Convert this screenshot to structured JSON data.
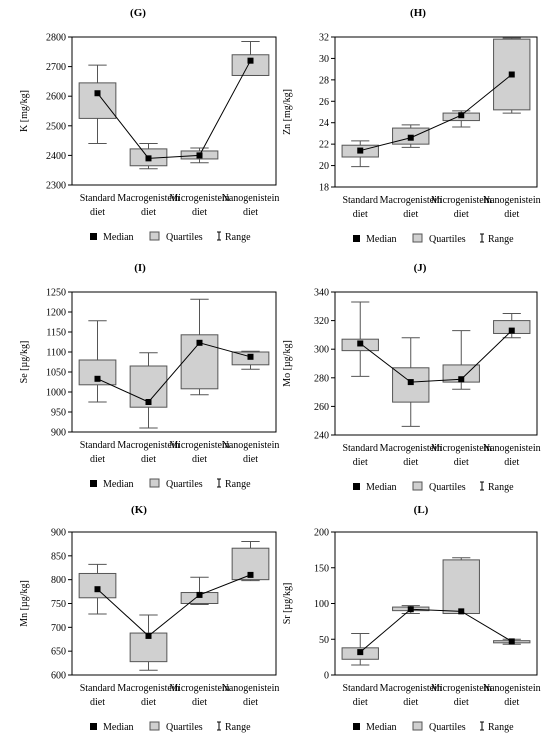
{
  "legend": {
    "median": "Median",
    "quartiles": "Quartiles",
    "range": "Range"
  },
  "colors": {
    "box_fill": "#d0d0d0",
    "stroke": "#555555",
    "median_marker": "#000000"
  },
  "chart_data": [
    {
      "panel": "(G)",
      "type": "boxplot",
      "ylabel": "K [mg/kg]",
      "ylim": [
        2300,
        2800
      ],
      "yticks": [
        2300,
        2400,
        2500,
        2600,
        2700,
        2800
      ],
      "categories": [
        [
          "Standard",
          "diet"
        ],
        [
          "Macrogenistein",
          "diet"
        ],
        [
          "Microgenistein",
          "diet"
        ],
        [
          "Nanogenistein",
          "diet"
        ]
      ],
      "series": [
        {
          "min": 2440,
          "q1": 2525,
          "median": 2610,
          "q3": 2645,
          "max": 2705
        },
        {
          "min": 2355,
          "q1": 2365,
          "median": 2390,
          "q3": 2422,
          "max": 2440
        },
        {
          "min": 2375,
          "q1": 2388,
          "median": 2400,
          "q3": 2415,
          "max": 2425
        },
        {
          "min": 2670,
          "q1": 2670,
          "median": 2720,
          "q3": 2740,
          "max": 2785
        }
      ],
      "grid": false,
      "legend_position": "bottom"
    },
    {
      "panel": "(H)",
      "type": "boxplot",
      "ylabel": "Zn [mg/kg]",
      "ylim": [
        18,
        32
      ],
      "yticks": [
        18,
        20,
        22,
        24,
        26,
        28,
        30,
        32
      ],
      "categories": [
        [
          "Standard",
          "diet"
        ],
        [
          "Macrogenistein",
          "diet"
        ],
        [
          "Microgenistein",
          "diet"
        ],
        [
          "Nanogenistein",
          "diet"
        ]
      ],
      "series": [
        {
          "min": 19.9,
          "q1": 20.8,
          "median": 21.4,
          "q3": 21.9,
          "max": 22.3
        },
        {
          "min": 21.7,
          "q1": 22.0,
          "median": 22.6,
          "q3": 23.5,
          "max": 23.8
        },
        {
          "min": 23.6,
          "q1": 24.2,
          "median": 24.7,
          "q3": 24.9,
          "max": 25.1
        },
        {
          "min": 24.9,
          "q1": 25.2,
          "median": 28.5,
          "q3": 31.8,
          "max": 31.9
        }
      ],
      "grid": false,
      "legend_position": "bottom"
    },
    {
      "panel": "(I)",
      "type": "boxplot",
      "ylabel": "Se [µg/kg]",
      "ylim": [
        900,
        1250
      ],
      "yticks": [
        900,
        950,
        1000,
        1050,
        1100,
        1150,
        1200,
        1250
      ],
      "categories": [
        [
          "Standard",
          "diet"
        ],
        [
          "Macrogenistein",
          "diet"
        ],
        [
          "Microgenistein",
          "diet"
        ],
        [
          "Nanogenistein",
          "diet"
        ]
      ],
      "series": [
        {
          "min": 975,
          "q1": 1018,
          "median": 1033,
          "q3": 1080,
          "max": 1178
        },
        {
          "min": 910,
          "q1": 962,
          "median": 975,
          "q3": 1065,
          "max": 1098
        },
        {
          "min": 993,
          "q1": 1008,
          "median": 1123,
          "q3": 1143,
          "max": 1232
        },
        {
          "min": 1057,
          "q1": 1068,
          "median": 1088,
          "q3": 1100,
          "max": 1102
        }
      ],
      "grid": false,
      "legend_position": "bottom"
    },
    {
      "panel": "(J)",
      "type": "boxplot",
      "ylabel": "Mo [µg/kg]",
      "ylim": [
        240,
        340
      ],
      "yticks": [
        240,
        260,
        280,
        300,
        320,
        340
      ],
      "categories": [
        [
          "Standard",
          "diet"
        ],
        [
          "Macrogenistein",
          "diet"
        ],
        [
          "Microgenistein",
          "diet"
        ],
        [
          "Nanogenistein",
          "diet"
        ]
      ],
      "series": [
        {
          "min": 281,
          "q1": 299,
          "median": 304,
          "q3": 307,
          "max": 333
        },
        {
          "min": 246,
          "q1": 263,
          "median": 277,
          "q3": 287,
          "max": 308
        },
        {
          "min": 272,
          "q1": 277,
          "median": 279,
          "q3": 289,
          "max": 313
        },
        {
          "min": 308,
          "q1": 311,
          "median": 313,
          "q3": 320,
          "max": 325
        }
      ],
      "grid": false,
      "legend_position": "bottom"
    },
    {
      "panel": "(K)",
      "type": "boxplot",
      "ylabel": "Mn [µg/kg]",
      "ylim": [
        600,
        900
      ],
      "yticks": [
        600,
        650,
        700,
        750,
        800,
        850,
        900
      ],
      "categories": [
        [
          "Standard",
          "diet"
        ],
        [
          "Macrogenistein",
          "diet"
        ],
        [
          "Microgenistein",
          "diet"
        ],
        [
          "Nanogenistein",
          "diet"
        ]
      ],
      "series": [
        {
          "min": 728,
          "q1": 762,
          "median": 780,
          "q3": 813,
          "max": 832
        },
        {
          "min": 610,
          "q1": 628,
          "median": 682,
          "q3": 688,
          "max": 726
        },
        {
          "min": 748,
          "q1": 750,
          "median": 768,
          "q3": 773,
          "max": 805
        },
        {
          "min": 798,
          "q1": 800,
          "median": 810,
          "q3": 866,
          "max": 880
        }
      ],
      "grid": false,
      "legend_position": "bottom"
    },
    {
      "panel": "(L)",
      "type": "boxplot",
      "ylabel": "Sr [µg/kg]",
      "ylim": [
        0,
        200
      ],
      "yticks": [
        0,
        50,
        100,
        150,
        200
      ],
      "categories": [
        [
          "Standard",
          "diet"
        ],
        [
          "Macrogenistein",
          "diet"
        ],
        [
          "Microgenistein",
          "diet"
        ],
        [
          "Nanogenistein",
          "diet"
        ]
      ],
      "series": [
        {
          "min": 14,
          "q1": 22,
          "median": 32,
          "q3": 38,
          "max": 58
        },
        {
          "min": 86,
          "q1": 90,
          "median": 92,
          "q3": 95,
          "max": 97
        },
        {
          "min": 86,
          "q1": 86,
          "median": 89,
          "q3": 161,
          "max": 164
        },
        {
          "min": 43,
          "q1": 45,
          "median": 47,
          "q3": 48,
          "max": 50
        }
      ],
      "grid": false,
      "legend_position": "bottom"
    }
  ]
}
